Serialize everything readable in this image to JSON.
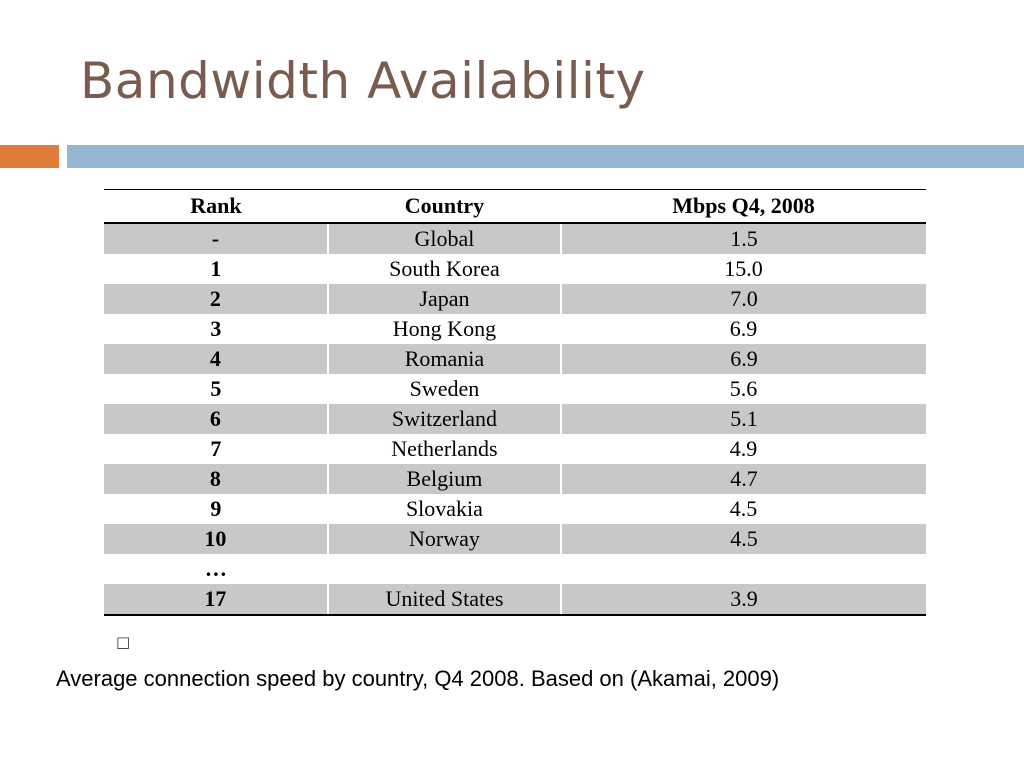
{
  "slide": {
    "title": "Bandwidth Availability",
    "accent_color": "#e07b3a",
    "bar_color": "#94b6d2",
    "title_color": "#7a5c4f"
  },
  "table": {
    "headers": {
      "rank": "Rank",
      "country": "Country",
      "mbps": "Mbps Q4, 2008"
    },
    "rows": [
      {
        "rank": "-",
        "country": "Global",
        "mbps": "1.5"
      },
      {
        "rank": "1",
        "country": "South Korea",
        "mbps": "15.0"
      },
      {
        "rank": "2",
        "country": "Japan",
        "mbps": "7.0"
      },
      {
        "rank": "3",
        "country": "Hong Kong",
        "mbps": "6.9"
      },
      {
        "rank": "4",
        "country": "Romania",
        "mbps": "6.9"
      },
      {
        "rank": "5",
        "country": "Sweden",
        "mbps": "5.6"
      },
      {
        "rank": "6",
        "country": "Switzerland",
        "mbps": "5.1"
      },
      {
        "rank": "7",
        "country": "Netherlands",
        "mbps": "4.9"
      },
      {
        "rank": "8",
        "country": "Belgium",
        "mbps": "4.7"
      },
      {
        "rank": "9",
        "country": "Slovakia",
        "mbps": "4.5"
      },
      {
        "rank": "10",
        "country": "Norway",
        "mbps": "4.5"
      },
      {
        "rank": "…",
        "country": "",
        "mbps": ""
      },
      {
        "rank": "17",
        "country": "United States",
        "mbps": "3.9"
      }
    ]
  },
  "placeholder_glyph": "□",
  "caption": "Average connection speed by country, Q4 2008. Based on (Akamai, 2009)"
}
